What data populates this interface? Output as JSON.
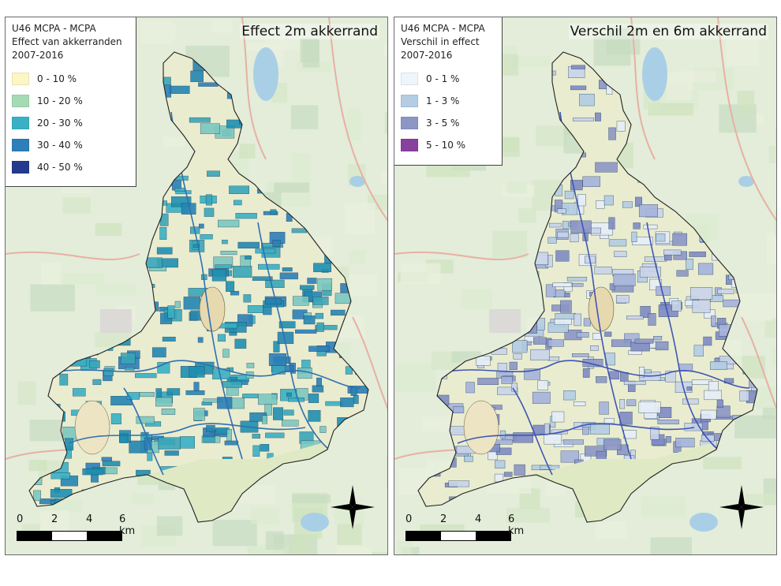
{
  "panels": [
    {
      "legend": {
        "line1": "U46 MCPA - MCPA",
        "line2": "Effect van akkerranden",
        "line3": "2007-2016",
        "items": [
          {
            "label": "0 - 10 %",
            "color": "#fbf6c2"
          },
          {
            "label": "10 - 20 %",
            "color": "#a4dbb5"
          },
          {
            "label": "20 - 30 %",
            "color": "#39b1c4"
          },
          {
            "label": "30 - 40 %",
            "color": "#2c7fb8"
          },
          {
            "label": "40 - 50 %",
            "color": "#243a8e"
          }
        ]
      },
      "title": "Effect  2m akkerrand",
      "scale": {
        "ticks": [
          "0",
          "2",
          "4",
          "6 km"
        ]
      },
      "field_colors": [
        "#1f8fb0",
        "#39b1c4",
        "#2c7fb8",
        "#3aa6b8",
        "#7cc8c0",
        "#2585b2"
      ],
      "line_color": "#2f6fb0"
    },
    {
      "legend": {
        "line1": "U46 MCPA - MCPA",
        "line2": "Verschil in effect",
        "line3": "2007-2016",
        "items": [
          {
            "label": "0 - 1 %",
            "color": "#eef5fb"
          },
          {
            "label": "1 - 3 %",
            "color": "#b3cde3"
          },
          {
            "label": "3 - 5 %",
            "color": "#8c96c6"
          },
          {
            "label": "5 - 10 %",
            "color": "#88419d"
          }
        ]
      },
      "title": "Verschil  2m en 6m akkerrand",
      "scale": {
        "ticks": [
          "0",
          "2",
          "4",
          "6 km"
        ]
      },
      "field_colors": [
        "#c9d4ea",
        "#8c96c6",
        "#a6b3dc",
        "#e6eef7",
        "#7f8bc4",
        "#b3cde3"
      ],
      "line_color": "#3e55b4"
    }
  ]
}
